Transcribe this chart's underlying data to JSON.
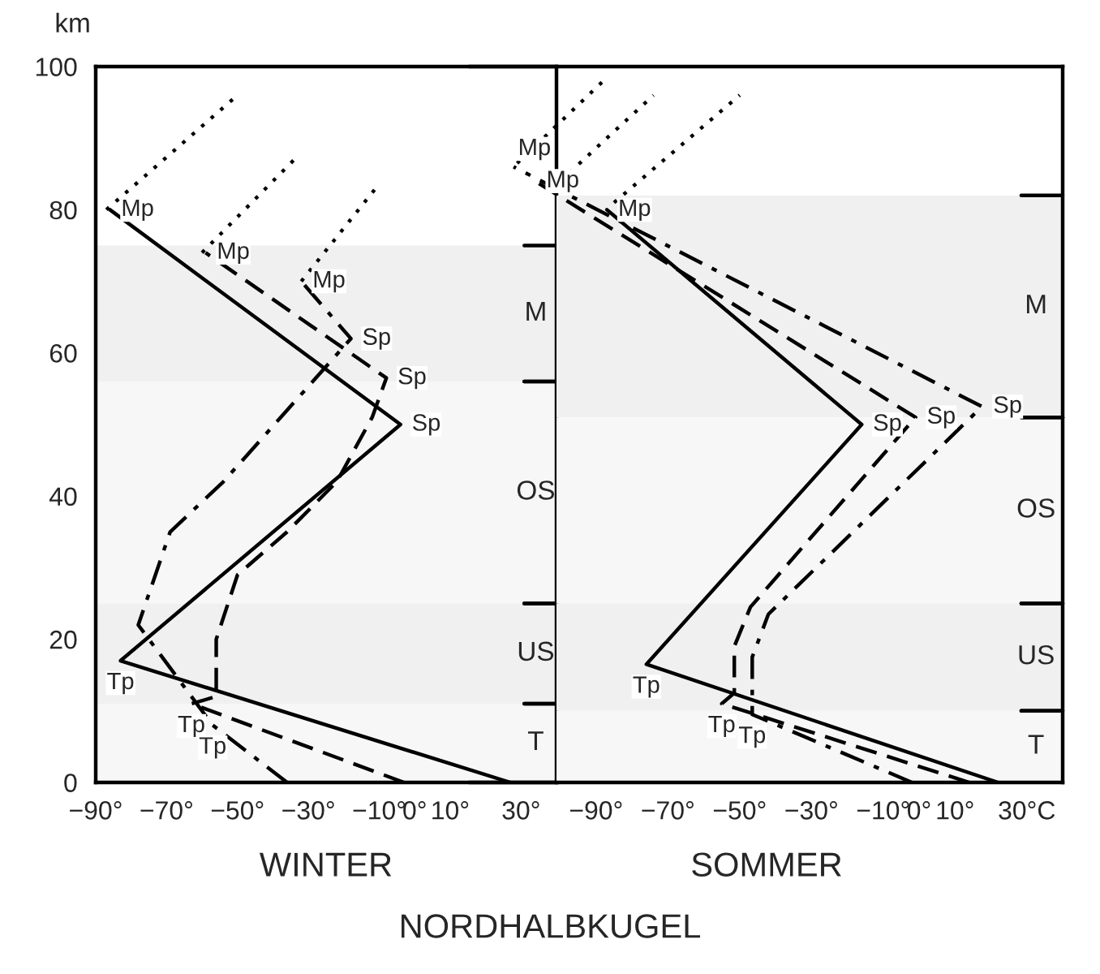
{
  "chart_data": [
    {
      "type": "line",
      "xlabel": "WINTER",
      "ylabel": "km",
      "xlim": [
        -90,
        40
      ],
      "ylim": [
        0,
        100
      ],
      "xticks": [
        {
          "value": -90,
          "label": "−90°"
        },
        {
          "value": -70,
          "label": "−70°"
        },
        {
          "value": -50,
          "label": "−50°"
        },
        {
          "value": -30,
          "label": "−30°"
        },
        {
          "value": -10,
          "label": "−10°"
        },
        {
          "value": 0,
          "label": "0°"
        },
        {
          "value": 10,
          "label": "10°"
        },
        {
          "value": 30,
          "label": "30°"
        }
      ],
      "yticks": [
        0,
        20,
        40,
        60,
        80,
        100
      ],
      "series": [
        {
          "color": "#000000",
          "line_style": "solid",
          "x": [
            27,
            -83,
            -4,
            -86
          ],
          "values": [
            0,
            17,
            50,
            80
          ]
        },
        {
          "color": "#000000",
          "line_style": "dashed",
          "x": [
            -3,
            -63,
            -56,
            -56,
            -50,
            -36,
            -22,
            -12,
            -8,
            -59
          ],
          "values": [
            0,
            11,
            12,
            20,
            29,
            35,
            42,
            51,
            56.5,
            74
          ]
        },
        {
          "color": "#000000",
          "line_style": "dashdot",
          "x": [
            -36,
            -57,
            -78,
            -69,
            -54,
            -18,
            -32
          ],
          "values": [
            0,
            8,
            22,
            35,
            42,
            62,
            70
          ]
        },
        {
          "color": "#000000",
          "line_style": "dotted",
          "x": [
            -87,
            -50
          ],
          "values": [
            80,
            96
          ]
        },
        {
          "color": "#000000",
          "line_style": "dotted",
          "x": [
            -60,
            -34
          ],
          "values": [
            74,
            87
          ]
        },
        {
          "color": "#000000",
          "line_style": "dotted",
          "x": [
            -32,
            -11
          ],
          "values": [
            70,
            83
          ]
        }
      ],
      "bands": [
        {
          "axis": "y",
          "from": 56,
          "to": 75,
          "label": "M",
          "color": "#f0f0f0"
        },
        {
          "axis": "y",
          "from": 25,
          "to": 56,
          "label": "OS",
          "color": "#f7f7f7"
        },
        {
          "axis": "y",
          "from": 11,
          "to": 25,
          "label": "US",
          "color": "#f0f0f0"
        },
        {
          "axis": "y",
          "from": 0,
          "to": 11,
          "label": "T",
          "color": "#f7f7f7"
        }
      ],
      "annotations": [
        {
          "text": "Mp",
          "x": -86,
          "y": 80
        },
        {
          "text": "Mp",
          "x": -59,
          "y": 74
        },
        {
          "text": "Mp",
          "x": -32,
          "y": 70
        },
        {
          "text": "Sp",
          "x": -18,
          "y": 62
        },
        {
          "text": "Sp",
          "x": -8,
          "y": 56.5
        },
        {
          "text": "Sp",
          "x": -4,
          "y": 50
        },
        {
          "text": "Tp",
          "x": -83,
          "y": 17
        },
        {
          "text": "Tp",
          "x": -63,
          "y": 11
        },
        {
          "text": "Tp",
          "x": -57,
          "y": 8
        }
      ]
    },
    {
      "type": "line",
      "xlabel": "SOMMER",
      "xlim": [
        -125,
        40
      ],
      "ylim": [
        0,
        100
      ],
      "tick_labels": "x",
      "xticks": [
        {
          "value": -90,
          "label": "−90°"
        },
        {
          "value": -70,
          "label": "−70°"
        },
        {
          "value": -50,
          "label": "−50°"
        },
        {
          "value": -30,
          "label": "−30°"
        },
        {
          "value": -10,
          "label": "−10°"
        },
        {
          "value": 0,
          "label": "0°"
        },
        {
          "value": 10,
          "label": "10°"
        },
        {
          "value": 30,
          "label": "30°C"
        }
      ],
      "series": [
        {
          "color": "#000000",
          "line_style": "solid",
          "x": [
            22,
            -76,
            -16,
            -87
          ],
          "values": [
            0,
            16.5,
            50,
            80
          ]
        },
        {
          "color": "#000000",
          "line_style": "dashed",
          "x": [
            14,
            -55,
            -51.5,
            -51.5,
            -47,
            -1,
            -107
          ],
          "values": [
            0,
            11,
            12.5,
            19,
            24.5,
            51,
            84
          ]
        },
        {
          "color": "#000000",
          "line_style": "dashdot",
          "x": [
            -2,
            -46.5,
            -46.5,
            -42,
            17.5,
            -113
          ],
          "values": [
            0,
            9.5,
            17.5,
            23.5,
            52.5,
            86
          ]
        },
        {
          "color": "#000000",
          "line_style": "dotted",
          "x": [
            -85,
            -50
          ],
          "values": [
            81,
            96
          ]
        },
        {
          "color": "#000000",
          "line_style": "dotted",
          "x": [
            -100,
            -74
          ],
          "values": [
            84,
            96
          ]
        },
        {
          "color": "#000000",
          "line_style": "dotted",
          "x": [
            -112,
            -88
          ],
          "values": [
            86.5,
            98
          ]
        }
      ],
      "bands": [
        {
          "axis": "y",
          "from": 51,
          "to": 82,
          "label": "M",
          "color": "#f0f0f0"
        },
        {
          "axis": "y",
          "from": 25,
          "to": 51,
          "label": "OS",
          "color": "#f7f7f7"
        },
        {
          "axis": "y",
          "from": 10,
          "to": 25,
          "label": "US",
          "color": "#f0f0f0"
        },
        {
          "axis": "y",
          "from": 0,
          "to": 10,
          "label": "T",
          "color": "#f7f7f7"
        }
      ],
      "annotations": [
        {
          "text": "Mp",
          "x": -113,
          "y": 86
        },
        {
          "text": "Mp",
          "x": -107,
          "y": 84
        },
        {
          "text": "Mp",
          "x": -87,
          "y": 80
        },
        {
          "text": "Sp",
          "x": -16,
          "y": 50
        },
        {
          "text": "Sp",
          "x": -1,
          "y": 51
        },
        {
          "text": "Sp",
          "x": 17.5,
          "y": 52.5
        },
        {
          "text": "Tp",
          "x": -76,
          "y": 16.5
        },
        {
          "text": "Tp",
          "x": -55,
          "y": 11
        },
        {
          "text": "Tp",
          "x": -46.5,
          "y": 9.5
        },
        "NORDHALBKUGEL"
      ]
    }
  ]
}
